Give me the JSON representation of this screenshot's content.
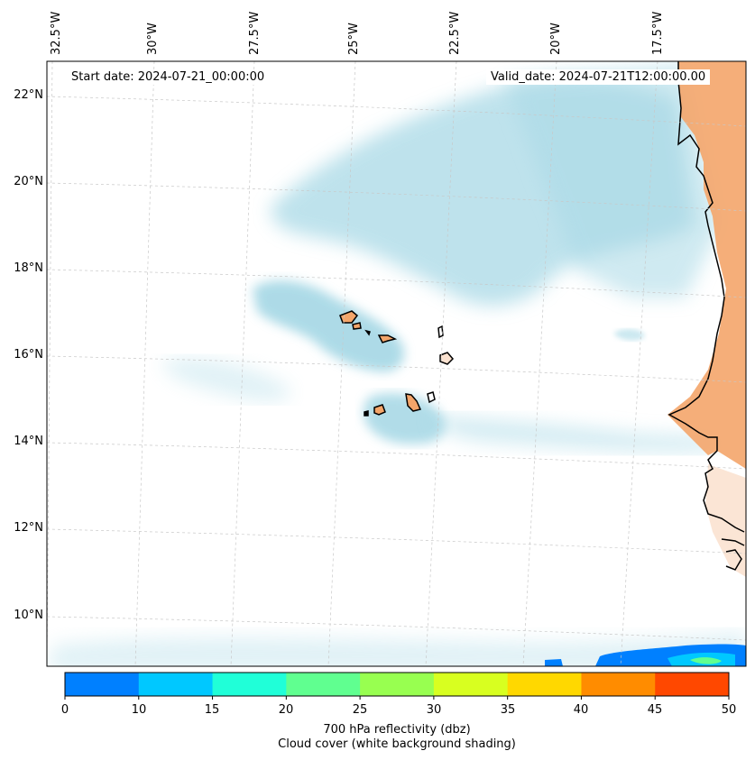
{
  "map": {
    "region": "Cape Verde and West African coast",
    "lon_labels": [
      "32.5°W",
      "30°W",
      "27.5°W",
      "25°W",
      "22.5°W",
      "20°W",
      "17.5°W"
    ],
    "lat_labels": [
      "22°N",
      "20°N",
      "18°N",
      "16°N",
      "14°N",
      "12°N",
      "10°N"
    ],
    "start_date": "Start date: 2024-07-21_00:00:00",
    "valid_date": "Valid_date: 2024-07-21T12:00:00.00"
  },
  "colorbar": {
    "ticks": [
      "0",
      "10",
      "15",
      "20",
      "25",
      "30",
      "35",
      "40",
      "45",
      "50"
    ],
    "colors": [
      "#0080ff",
      "#00c8ff",
      "#20ffd8",
      "#60ff90",
      "#98ff50",
      "#d8ff20",
      "#ffd800",
      "#ff8c00",
      "#ff4800"
    ],
    "label_line1": "700 hPa reflectivity (dbz)",
    "label_line2": "Cloud cover (white background shading)"
  },
  "colors": {
    "cloud": "#a9d9e6",
    "land": "#f4a56a",
    "coast": "#000000",
    "grid": "#c8c8c8"
  }
}
